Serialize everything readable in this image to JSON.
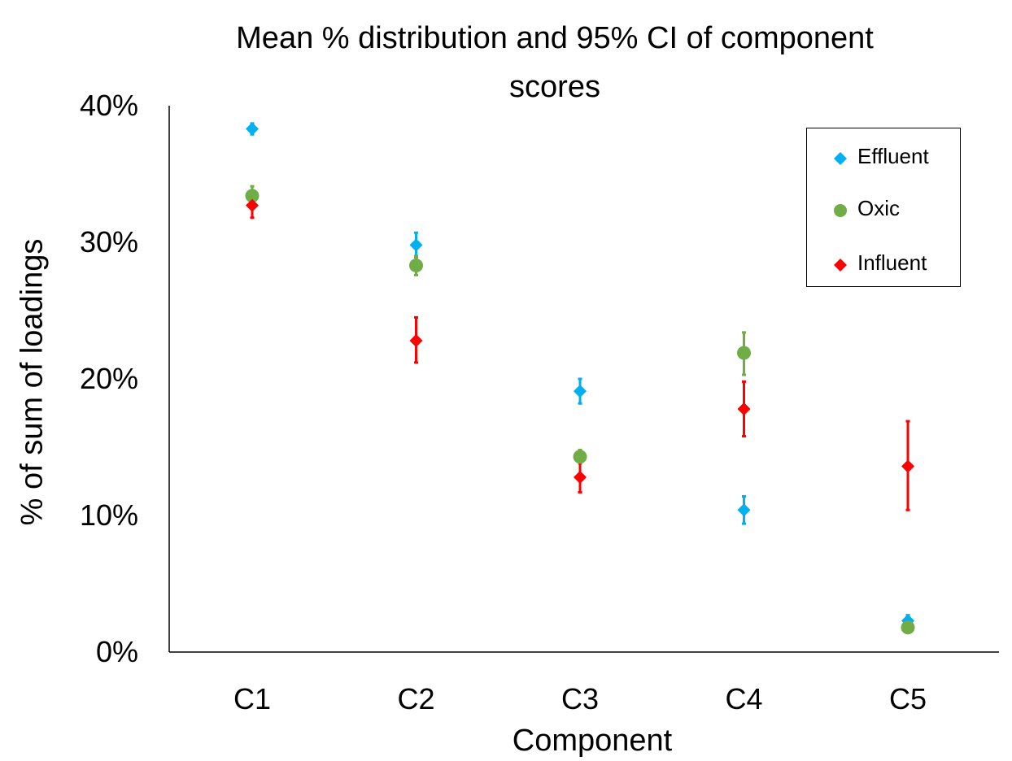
{
  "chart_data": {
    "type": "scatter",
    "title": "Mean % distribution and 95% CI of component scores",
    "title_lines": [
      "Mean % distribution and 95% CI of component",
      "scores"
    ],
    "xlabel": "Component",
    "ylabel": "% of sum of loadings",
    "categories": [
      "C1",
      "C2",
      "C3",
      "C4",
      "C5"
    ],
    "ylim": [
      0,
      40
    ],
    "yticks": [
      "0%",
      "10%",
      "20%",
      "30%",
      "40%"
    ],
    "ytick_values": [
      0,
      10,
      20,
      30,
      40
    ],
    "grid": false,
    "legend_position": "top-right",
    "series": [
      {
        "name": "Effluent",
        "color": "#00B0F0",
        "marker": "diamond",
        "values": [
          38.3,
          29.8,
          19.1,
          10.4,
          2.3
        ],
        "ci_low": [
          37.9,
          28.9,
          18.2,
          9.4,
          1.9
        ],
        "ci_high": [
          38.7,
          30.7,
          20.0,
          11.4,
          2.7
        ]
      },
      {
        "name": "Oxic",
        "color": "#70AD47",
        "marker": "circle",
        "values": [
          33.4,
          28.3,
          14.3,
          21.9,
          1.8
        ],
        "ci_low": [
          32.7,
          27.6,
          13.8,
          20.3,
          1.5
        ],
        "ci_high": [
          34.1,
          29.0,
          14.8,
          23.4,
          2.1
        ]
      },
      {
        "name": "Influent",
        "color": "#FF0000",
        "marker": "diamond",
        "values": [
          32.7,
          22.8,
          12.8,
          17.8,
          13.6
        ],
        "ci_low": [
          31.8,
          21.2,
          11.7,
          15.8,
          10.4
        ],
        "ci_high": [
          33.6,
          24.5,
          13.9,
          19.8,
          16.9
        ]
      }
    ]
  }
}
